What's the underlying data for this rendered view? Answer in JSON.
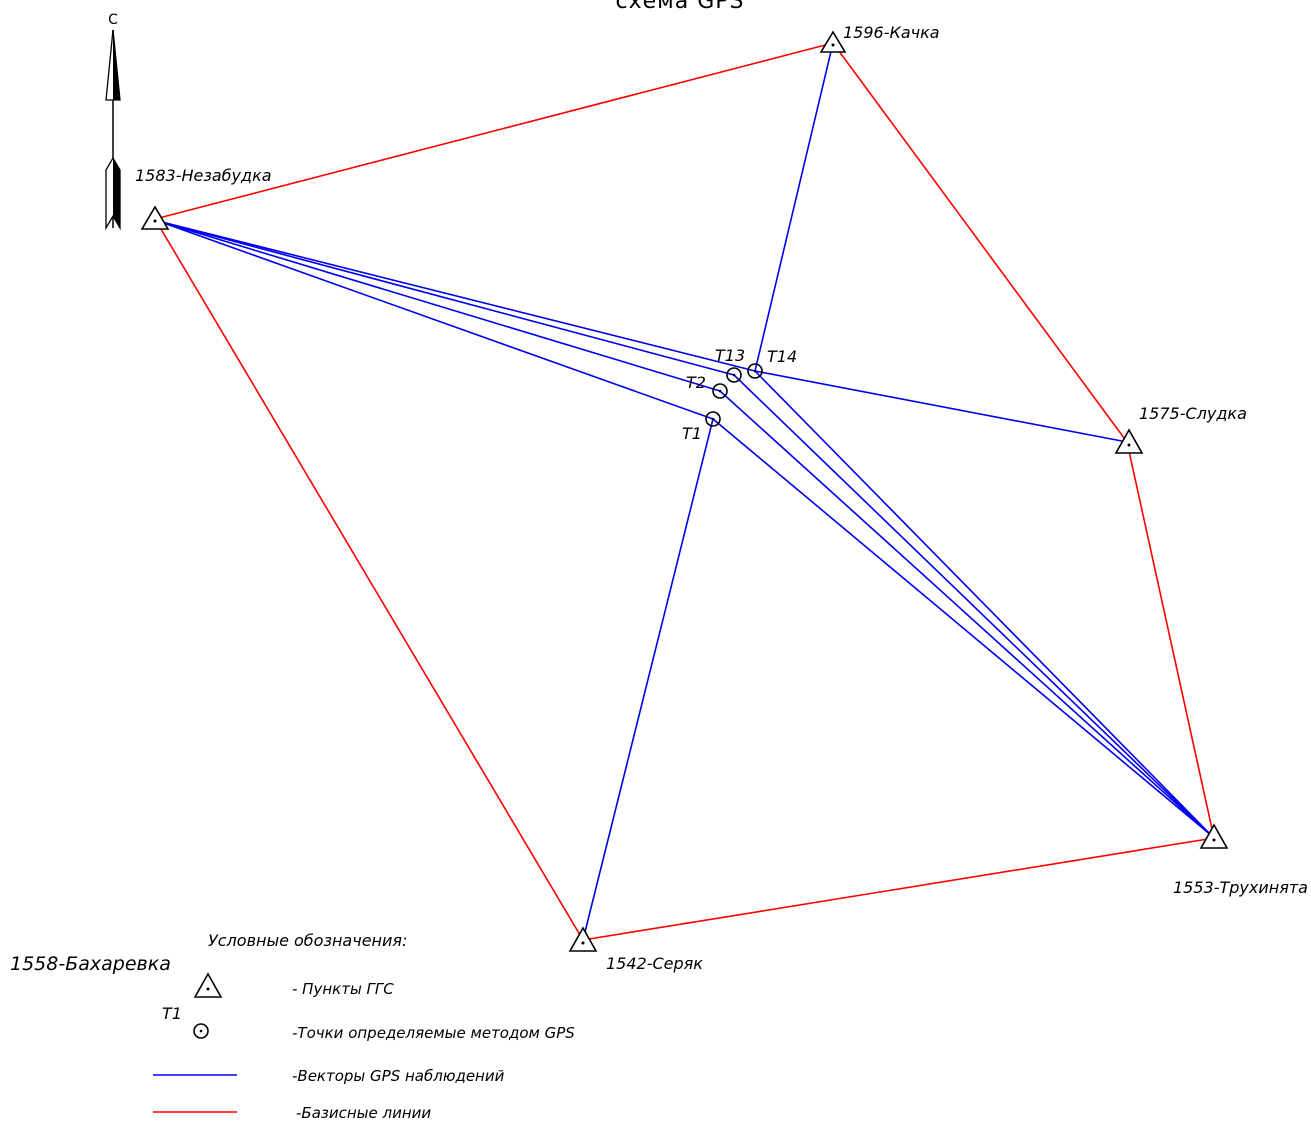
{
  "title": "схема GPS",
  "north_label": "С",
  "stations": {
    "kachka": "1596-Качка",
    "nezabudka": "1583-Незабудка",
    "sludka": "1575-Слудка",
    "seryak": "1542-Серяк",
    "truhinyata": "1553-Трухинята",
    "bakharevka": "1558-Бахаревка"
  },
  "points": {
    "t1": "T1",
    "t2": "T2",
    "t13": "T13",
    "t14": "T14"
  },
  "legend": {
    "heading": "Условные обозначения:",
    "ggs_label": "- Пункты ГГС",
    "gps_point_tag": "T1",
    "gps_point_label": "-Точки определяемые методом GPS",
    "vector_label": "-Векторы GPS наблюдений",
    "baseline_label": "-Базисные линии"
  },
  "colors": {
    "baseline": "#ff0000",
    "gps_vector": "#0000ee"
  }
}
